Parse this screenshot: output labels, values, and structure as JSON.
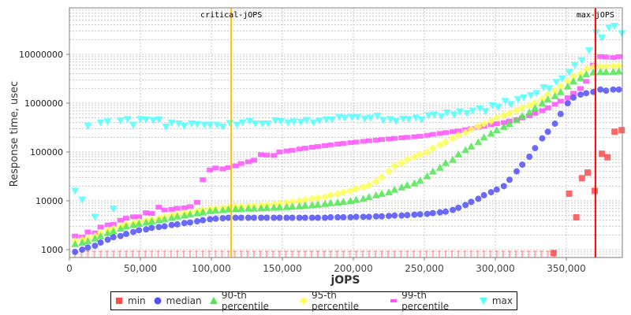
{
  "chart_data": {
    "type": "scatter",
    "title": "",
    "xlabel": "jOPS",
    "ylabel": "Response time, usec",
    "xlim": [
      0,
      390000
    ],
    "ylim": [
      700,
      90000000
    ],
    "yscale": "log",
    "grid": true,
    "legend_position": "bottom",
    "x_ticks": [
      "0",
      "50,000",
      "100,000",
      "150,000",
      "200,000",
      "250,000",
      "300,000",
      "350,000"
    ],
    "y_ticks": [
      "1000",
      "10000",
      "100000",
      "1000000",
      "10000000"
    ],
    "annotations": [
      {
        "label": "critical-jOPS",
        "x": 114000,
        "color": "#ffc000"
      },
      {
        "label": "max-jOPS",
        "x": 370500,
        "color": "#ff0000"
      }
    ],
    "series": [
      {
        "name": "min",
        "color": "#ff4d4d",
        "marker": "square",
        "points": [
          [
            341000,
            850
          ],
          [
            352000,
            14000
          ],
          [
            357000,
            4600
          ],
          [
            361000,
            29000
          ],
          [
            365000,
            38000
          ],
          [
            370000,
            16000
          ],
          [
            375000,
            92000
          ],
          [
            379000,
            78000
          ],
          [
            384000,
            260000
          ],
          [
            389000,
            280000
          ]
        ],
        "baseline_note": "most min values are at or below 1000 (rendered as capped markers along the bottom)"
      },
      {
        "name": "median",
        "color": "#5050ff",
        "marker": "circle",
        "x": [
          4000,
          9000,
          13000,
          18000,
          22000,
          27000,
          31000,
          36000,
          40000,
          45000,
          49000,
          54000,
          58000,
          63000,
          67000,
          72000,
          76000,
          81000,
          85000,
          90000,
          94000,
          99000,
          103000,
          108000,
          112000,
          117000,
          121000,
          126000,
          130000,
          135000,
          139000,
          144000,
          148000,
          153000,
          157000,
          162000,
          166000,
          171000,
          175000,
          180000,
          184000,
          189000,
          193000,
          198000,
          202000,
          207000,
          211000,
          216000,
          220000,
          225000,
          229000,
          234000,
          238000,
          243000,
          247000,
          252000,
          256000,
          261000,
          265000,
          270000,
          274000,
          279000,
          283000,
          288000,
          292000,
          297000,
          301000,
          306000,
          310000,
          315000,
          319000,
          324000,
          328000,
          333000,
          337000,
          342000,
          346000,
          351000,
          355000,
          360000,
          364000,
          369000,
          374000,
          378000,
          383000,
          387000
        ],
        "values": [
          900,
          1000,
          1100,
          1200,
          1400,
          1600,
          1800,
          1900,
          2100,
          2300,
          2500,
          2600,
          2800,
          2900,
          3000,
          3200,
          3300,
          3500,
          3600,
          3800,
          4000,
          4200,
          4300,
          4400,
          4500,
          4500,
          4500,
          4500,
          4500,
          4500,
          4500,
          4500,
          4500,
          4500,
          4500,
          4500,
          4500,
          4500,
          4500,
          4500,
          4600,
          4600,
          4600,
          4600,
          4700,
          4700,
          4700,
          4800,
          4800,
          4900,
          5000,
          5000,
          5100,
          5200,
          5300,
          5400,
          5600,
          5800,
          6000,
          6500,
          7200,
          8200,
          9500,
          11000,
          13000,
          15000,
          17000,
          20000,
          27000,
          40000,
          55000,
          80000,
          120000,
          190000,
          260000,
          380000,
          600000,
          1000000,
          1300000,
          1500000,
          1600000,
          1700000,
          1900000,
          1800000,
          1900000,
          1900000
        ]
      },
      {
        "name": "90-th percentile",
        "color": "#50e650",
        "marker": "triangle-up",
        "values_note": "same x positions as median",
        "values": [
          1300,
          1400,
          1500,
          1700,
          1900,
          2200,
          2400,
          2700,
          3000,
          3200,
          3400,
          3600,
          3800,
          4000,
          4200,
          4500,
          4800,
          5000,
          5300,
          5600,
          5900,
          6200,
          6400,
          6500,
          6700,
          6800,
          6900,
          7000,
          7000,
          7100,
          7200,
          7300,
          7400,
          7500,
          7600,
          7800,
          8000,
          8200,
          8400,
          8700,
          9000,
          9300,
          9600,
          10000,
          10500,
          11000,
          12000,
          13000,
          14000,
          15000,
          17000,
          19000,
          21000,
          23000,
          26000,
          32000,
          40000,
          48000,
          60000,
          70000,
          90000,
          110000,
          130000,
          160000,
          200000,
          240000,
          280000,
          330000,
          380000,
          450000,
          550000,
          650000,
          800000,
          1000000,
          1200000,
          1400000,
          1700000,
          2200000,
          2800000,
          3300000,
          3900000,
          4300000,
          4400000,
          4400000,
          4400000,
          4500000
        ]
      },
      {
        "name": "95-th percentile",
        "color": "#ffff50",
        "marker": "diamond",
        "values": [
          1500,
          1600,
          1700,
          1900,
          2200,
          2500,
          2700,
          3000,
          3300,
          3500,
          3700,
          3900,
          4100,
          4400,
          4700,
          5000,
          5300,
          5600,
          5900,
          6200,
          6500,
          6800,
          7000,
          7200,
          7400,
          7500,
          7600,
          7700,
          7800,
          8000,
          8200,
          8500,
          8800,
          9200,
          9600,
          10000,
          10500,
          11000,
          11500,
          12000,
          13000,
          14000,
          15000,
          16000,
          17500,
          19000,
          21000,
          25000,
          30000,
          40000,
          52000,
          60000,
          70000,
          80000,
          90000,
          100000,
          120000,
          140000,
          160000,
          190000,
          220000,
          250000,
          290000,
          330000,
          380000,
          430000,
          500000,
          560000,
          620000,
          700000,
          800000,
          900000,
          1000000,
          1200000,
          1500000,
          1800000,
          2200000,
          2800000,
          3500000,
          4000000,
          5000000,
          5500000,
          5600000,
          5600000,
          5700000,
          5800000
        ]
      },
      {
        "name": "99-th percentile",
        "color": "#ff50ff",
        "marker": "square",
        "values": [
          1900,
          1800,
          2300,
          2200,
          2900,
          3200,
          3300,
          4000,
          4400,
          4700,
          4700,
          5700,
          5500,
          7400,
          6500,
          6700,
          7000,
          7200,
          7600,
          9300,
          27000,
          43000,
          47000,
          45000,
          48000,
          52000,
          58000,
          63000,
          68000,
          88000,
          86000,
          85000,
          100000,
          105000,
          108000,
          115000,
          120000,
          125000,
          130000,
          135000,
          140000,
          145000,
          150000,
          155000,
          160000,
          165000,
          170000,
          175000,
          180000,
          185000,
          190000,
          195000,
          200000,
          205000,
          210000,
          220000,
          230000,
          240000,
          250000,
          260000,
          270000,
          285000,
          300000,
          320000,
          340000,
          360000,
          380000,
          400000,
          430000,
          460000,
          500000,
          550000,
          620000,
          700000,
          800000,
          950000,
          1100000,
          1300000,
          1600000,
          2000000,
          2800000,
          6000000,
          9000000,
          8800000,
          8600000,
          9000000
        ]
      },
      {
        "name": "max",
        "color": "#50ffff",
        "marker": "triangle-down",
        "values": [
          16000,
          10500,
          null,
          4700,
          null,
          null,
          6800,
          null,
          null,
          null,
          null,
          null,
          null,
          null,
          null,
          null,
          null,
          null,
          null,
          null,
          null,
          null,
          null,
          null,
          null,
          null,
          null,
          null,
          null,
          null,
          null,
          null,
          null,
          null,
          null,
          null,
          null,
          null,
          null,
          null,
          null,
          null,
          null,
          null,
          null,
          null,
          null,
          null,
          null,
          null,
          null,
          null,
          null,
          null,
          null,
          null,
          null,
          null,
          null,
          null,
          null,
          null,
          null,
          null,
          null,
          null,
          null,
          null,
          null,
          null,
          null,
          null,
          null,
          null,
          null,
          null,
          null,
          null,
          null,
          null,
          null,
          null,
          null,
          null,
          null,
          null
        ],
        "upper_values": [
          [
            13000,
            340000
          ],
          [
            22000,
            400000
          ],
          [
            27000,
            420000
          ],
          [
            36000,
            440000
          ],
          [
            41000,
            470000
          ],
          [
            45000,
            360000
          ],
          [
            50000,
            470000
          ],
          [
            54000,
            460000
          ],
          [
            59000,
            450000
          ],
          [
            63000,
            460000
          ],
          [
            68000,
            330000
          ],
          [
            72000,
            400000
          ],
          [
            77000,
            380000
          ],
          [
            81000,
            340000
          ],
          [
            86000,
            380000
          ],
          [
            90000,
            370000
          ],
          [
            95000,
            360000
          ],
          [
            99000,
            360000
          ],
          [
            104000,
            360000
          ],
          [
            108000,
            330000
          ],
          [
            113000,
            390000
          ],
          [
            118000,
            360000
          ],
          [
            122000,
            400000
          ],
          [
            127000,
            430000
          ],
          [
            131000,
            380000
          ],
          [
            136000,
            380000
          ],
          [
            140000,
            380000
          ],
          [
            145000,
            440000
          ],
          [
            149000,
            430000
          ],
          [
            154000,
            400000
          ],
          [
            158000,
            420000
          ],
          [
            163000,
            410000
          ],
          [
            167000,
            450000
          ],
          [
            172000,
            400000
          ],
          [
            176000,
            440000
          ],
          [
            181000,
            460000
          ],
          [
            185000,
            460000
          ],
          [
            190000,
            520000
          ],
          [
            194000,
            500000
          ],
          [
            199000,
            520000
          ],
          [
            203000,
            520000
          ],
          [
            208000,
            480000
          ],
          [
            212000,
            500000
          ],
          [
            217000,
            550000
          ],
          [
            221000,
            450000
          ],
          [
            226000,
            470000
          ],
          [
            230000,
            430000
          ],
          [
            235000,
            480000
          ],
          [
            239000,
            470000
          ],
          [
            244000,
            500000
          ],
          [
            248000,
            460000
          ],
          [
            253000,
            560000
          ],
          [
            257000,
            580000
          ],
          [
            262000,
            540000
          ],
          [
            266000,
            640000
          ],
          [
            271000,
            580000
          ],
          [
            275000,
            670000
          ],
          [
            280000,
            620000
          ],
          [
            284000,
            700000
          ],
          [
            289000,
            780000
          ],
          [
            293000,
            680000
          ],
          [
            298000,
            900000
          ],
          [
            302000,
            830000
          ],
          [
            307000,
            1100000
          ],
          [
            311000,
            950000
          ],
          [
            316000,
            1200000
          ],
          [
            320000,
            1300000
          ],
          [
            325000,
            1450000
          ],
          [
            329000,
            1600000
          ],
          [
            334000,
            2100000
          ],
          [
            338000,
            2000000
          ],
          [
            343000,
            2700000
          ],
          [
            347000,
            3200000
          ],
          [
            352000,
            4300000
          ],
          [
            356000,
            6000000
          ],
          [
            361000,
            7500000
          ],
          [
            366000,
            12000000
          ],
          [
            371000,
            28000000
          ],
          [
            375000,
            22000000
          ],
          [
            380000,
            35000000
          ],
          [
            384000,
            38000000
          ],
          [
            389000,
            27000000
          ]
        ]
      }
    ]
  },
  "legend": {
    "items": [
      {
        "label": "min",
        "color": "#ff4d4d",
        "marker": "square"
      },
      {
        "label": "median",
        "color": "#5050ff",
        "marker": "circle"
      },
      {
        "label": "90-th percentile",
        "color": "#50e650",
        "marker": "triangle-up"
      },
      {
        "label": "95-th percentile",
        "color": "#ffff50",
        "marker": "diamond"
      },
      {
        "label": "99-th percentile",
        "color": "#ff50ff",
        "marker": "square-small"
      },
      {
        "label": "max",
        "color": "#50ffff",
        "marker": "triangle-down"
      }
    ]
  }
}
